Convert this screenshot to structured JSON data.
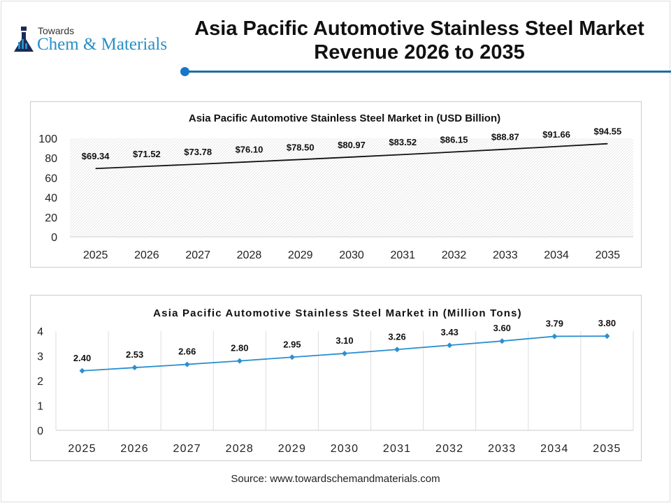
{
  "logo": {
    "line1": "Towards",
    "line2": "Chem & Materials"
  },
  "header": {
    "title_line1": "Asia Pacific Automotive Stainless Steel Market",
    "title_line2": "Revenue 2026 to 2035"
  },
  "source": "Source: www.towardschemandmaterials.com",
  "colors": {
    "accent": "#1677c8",
    "line1": "#111111",
    "line2": "#2a8fd0"
  },
  "chart_data": [
    {
      "type": "line",
      "title": "Asia Pacific Automotive Stainless Steel Market in (USD Billion)",
      "categories": [
        "2025",
        "2026",
        "2027",
        "2028",
        "2029",
        "2030",
        "2031",
        "2032",
        "2033",
        "2034",
        "2035"
      ],
      "values": [
        69.34,
        71.52,
        73.78,
        76.1,
        78.5,
        80.97,
        83.52,
        86.15,
        88.87,
        91.66,
        94.55
      ],
      "labels": [
        "$69.34",
        "$71.52",
        "$73.78",
        "$76.10",
        "$78.50",
        "$80.97",
        "$83.52",
        "$86.15",
        "$88.87",
        "$91.66",
        "$94.55"
      ],
      "yticks": [
        "0",
        "20",
        "40",
        "60",
        "80",
        "100"
      ],
      "ylim": [
        0,
        100
      ],
      "grid": "hatched background"
    },
    {
      "type": "line",
      "title": "Asia Pacific Automotive Stainless Steel Market in (Million Tons)",
      "categories": [
        "2025",
        "2026",
        "2027",
        "2028",
        "2029",
        "2030",
        "2031",
        "2032",
        "2033",
        "2034",
        "2035"
      ],
      "values": [
        2.4,
        2.53,
        2.66,
        2.8,
        2.95,
        3.1,
        3.26,
        3.43,
        3.6,
        3.79,
        3.8
      ],
      "labels": [
        "2.40",
        "2.53",
        "2.66",
        "2.80",
        "2.95",
        "3.10",
        "3.26",
        "3.43",
        "3.60",
        "3.79",
        "3.80"
      ],
      "yticks": [
        "0",
        "1",
        "2",
        "3",
        "4"
      ],
      "ylim": [
        0,
        4
      ],
      "grid": "vertical",
      "markers": "diamond"
    }
  ]
}
